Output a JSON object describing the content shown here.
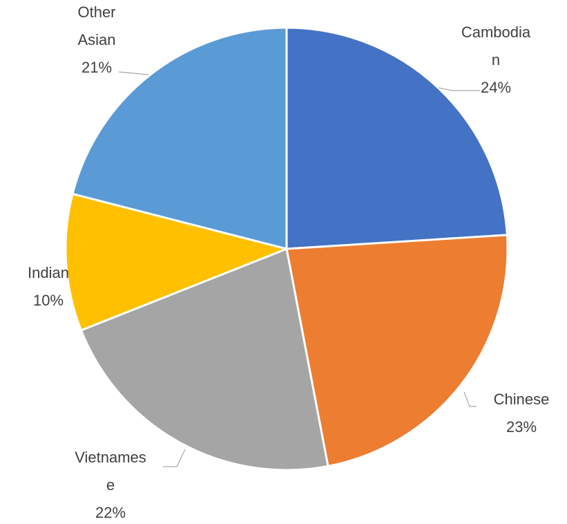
{
  "chart_data": {
    "type": "pie",
    "categories": [
      "Cambodian",
      "Chinese",
      "Vietnamese",
      "Indian",
      "Other Asian"
    ],
    "values": [
      24,
      23,
      22,
      10,
      21
    ],
    "value_labels": [
      "24%",
      "23%",
      "22%",
      "10%",
      "21%"
    ],
    "colors": [
      "#4472c4",
      "#ed7d31",
      "#a5a5a5",
      "#ffc000",
      "#5b9bd5"
    ]
  }
}
